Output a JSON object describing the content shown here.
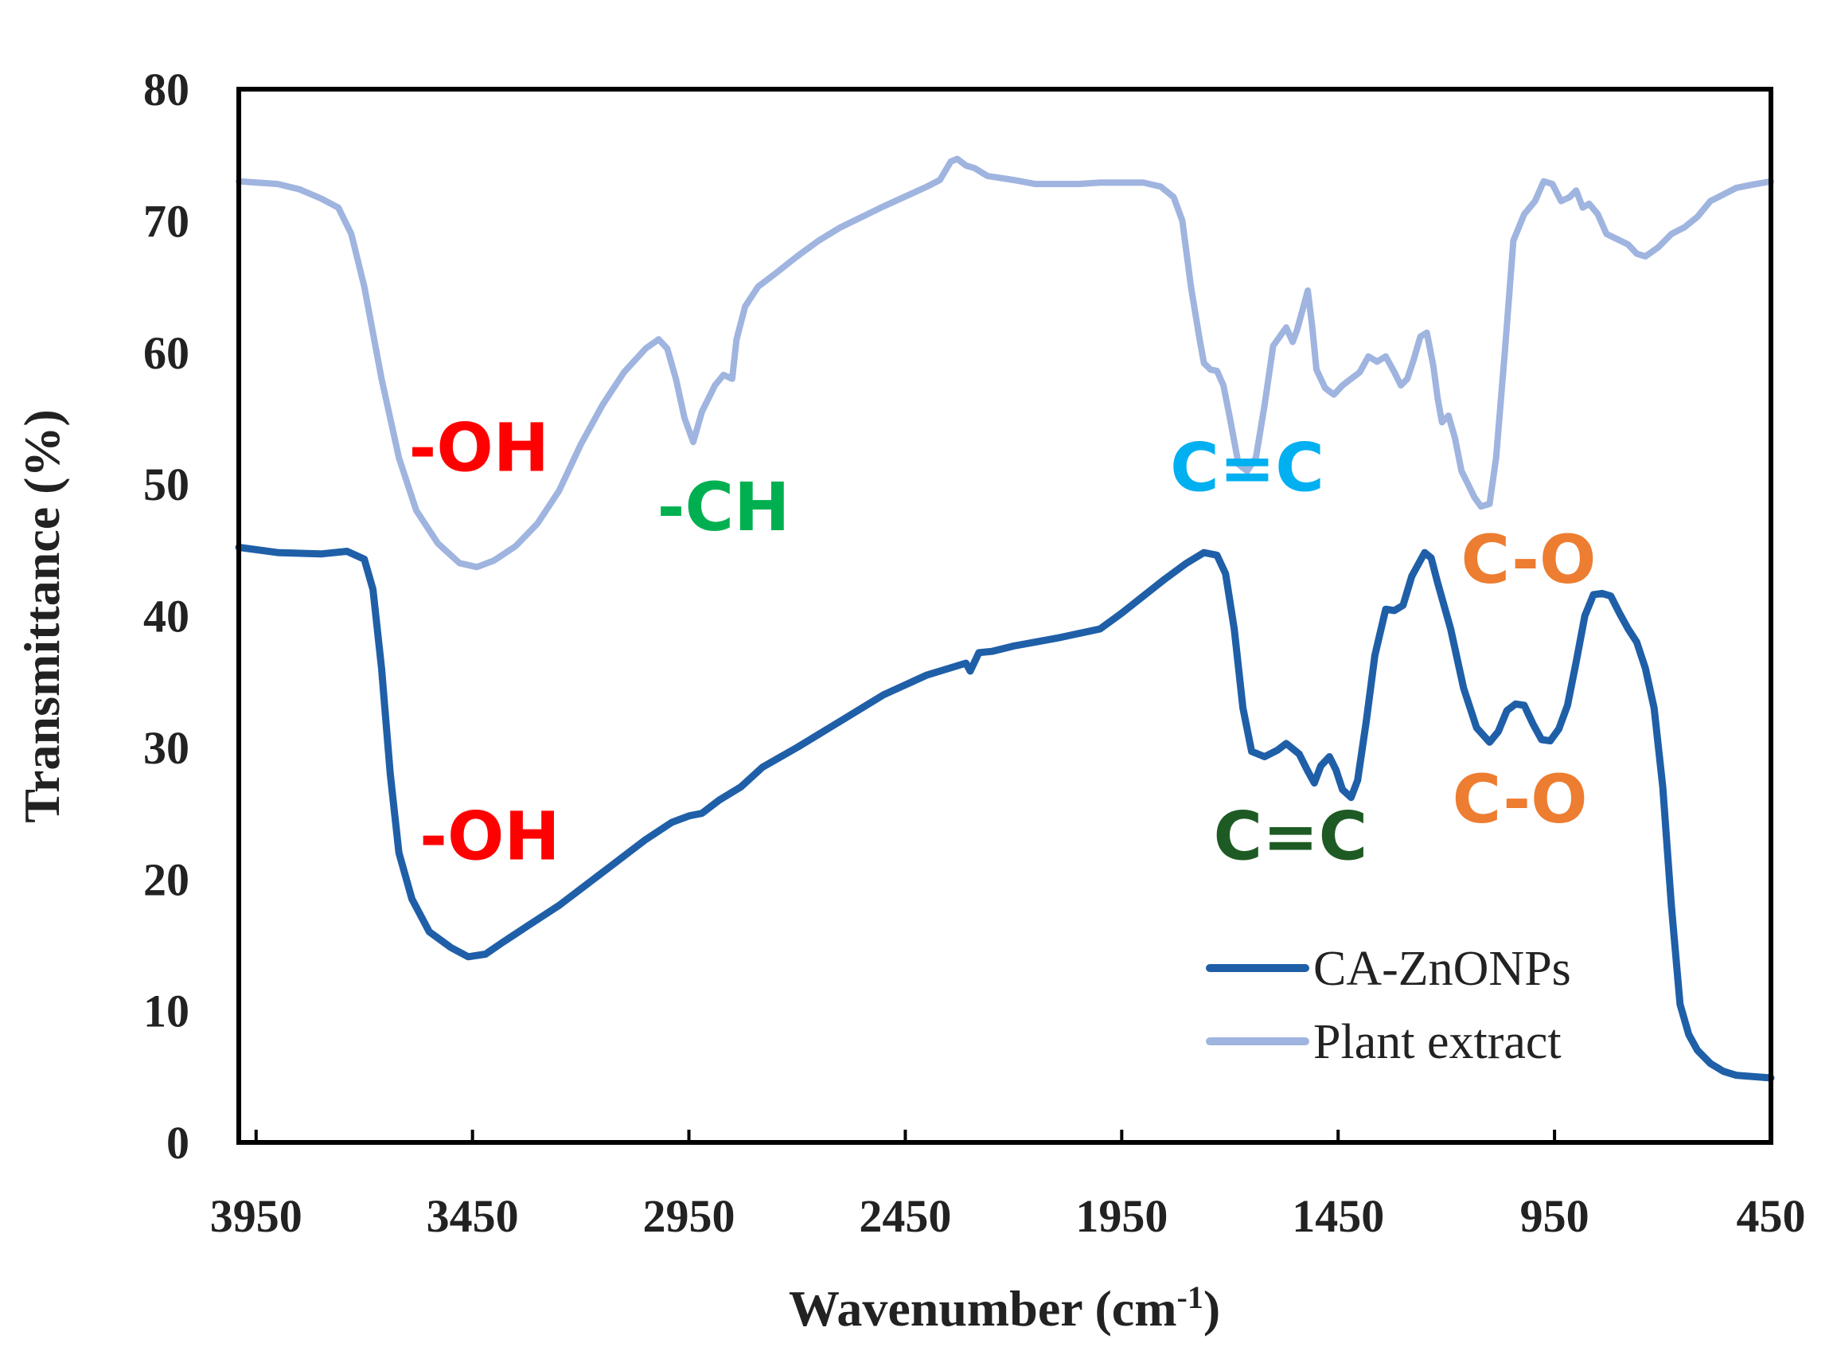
{
  "chart_data": {
    "type": "line",
    "title": "",
    "xlabel": "Wavenumber (cm",
    "xlabel_sup": "-1",
    "xlabel_close": ")",
    "ylabel": "Transmittance (%)",
    "xlim": [
      3990,
      450
    ],
    "ylim": [
      0,
      80
    ],
    "xticks": [
      3950,
      3450,
      2950,
      2450,
      1950,
      1450,
      950,
      450
    ],
    "xtick_labels": [
      "3950",
      "3450",
      "2950",
      "2450",
      "1950",
      "1450",
      "950",
      "450"
    ],
    "yticks": [
      0,
      10,
      20,
      30,
      40,
      50,
      60,
      70,
      80
    ],
    "ytick_labels": [
      "0",
      "10",
      "20",
      "30",
      "40",
      "50",
      "60",
      "70",
      "80"
    ],
    "legend_position": "bottom-right",
    "series": [
      {
        "name": "CA-ZnONPs",
        "color": "#1f5fa8",
        "points": [
          [
            3990,
            45.2
          ],
          [
            3900,
            44.8
          ],
          [
            3800,
            44.7
          ],
          [
            3740,
            44.9
          ],
          [
            3700,
            44.3
          ],
          [
            3680,
            42
          ],
          [
            3660,
            36
          ],
          [
            3640,
            28
          ],
          [
            3620,
            22
          ],
          [
            3590,
            18.5
          ],
          [
            3550,
            16
          ],
          [
            3500,
            14.8
          ],
          [
            3460,
            14.1
          ],
          [
            3420,
            14.3
          ],
          [
            3380,
            15.2
          ],
          [
            3320,
            16.5
          ],
          [
            3250,
            18
          ],
          [
            3150,
            20.5
          ],
          [
            3050,
            23
          ],
          [
            2990,
            24.3
          ],
          [
            2950,
            24.8
          ],
          [
            2920,
            25
          ],
          [
            2880,
            26
          ],
          [
            2830,
            27
          ],
          [
            2780,
            28.5
          ],
          [
            2700,
            30
          ],
          [
            2600,
            32
          ],
          [
            2500,
            34
          ],
          [
            2400,
            35.5
          ],
          [
            2310,
            36.4
          ],
          [
            2300,
            35.8
          ],
          [
            2280,
            37.2
          ],
          [
            2250,
            37.3
          ],
          [
            2200,
            37.7
          ],
          [
            2100,
            38.3
          ],
          [
            2000,
            39
          ],
          [
            1950,
            40.2
          ],
          [
            1900,
            41.5
          ],
          [
            1850,
            42.8
          ],
          [
            1800,
            44
          ],
          [
            1760,
            44.8
          ],
          [
            1730,
            44.6
          ],
          [
            1710,
            43.2
          ],
          [
            1690,
            39
          ],
          [
            1670,
            33
          ],
          [
            1650,
            29.7
          ],
          [
            1620,
            29.3
          ],
          [
            1590,
            29.8
          ],
          [
            1570,
            30.3
          ],
          [
            1540,
            29.5
          ],
          [
            1520,
            28.2
          ],
          [
            1505,
            27.3
          ],
          [
            1490,
            28.6
          ],
          [
            1470,
            29.3
          ],
          [
            1455,
            28.3
          ],
          [
            1440,
            26.8
          ],
          [
            1420,
            26.2
          ],
          [
            1405,
            27.5
          ],
          [
            1385,
            32
          ],
          [
            1365,
            37
          ],
          [
            1340,
            40.5
          ],
          [
            1320,
            40.4
          ],
          [
            1300,
            40.8
          ],
          [
            1280,
            43
          ],
          [
            1250,
            44.8
          ],
          [
            1235,
            44.4
          ],
          [
            1220,
            42.5
          ],
          [
            1190,
            39
          ],
          [
            1160,
            34.5
          ],
          [
            1130,
            31.5
          ],
          [
            1100,
            30.4
          ],
          [
            1080,
            31.2
          ],
          [
            1060,
            32.8
          ],
          [
            1040,
            33.3
          ],
          [
            1020,
            33.2
          ],
          [
            1000,
            31.8
          ],
          [
            980,
            30.6
          ],
          [
            960,
            30.5
          ],
          [
            940,
            31.4
          ],
          [
            920,
            33.2
          ],
          [
            900,
            36.5
          ],
          [
            880,
            40
          ],
          [
            860,
            41.6
          ],
          [
            840,
            41.7
          ],
          [
            820,
            41.5
          ],
          [
            800,
            40.2
          ],
          [
            780,
            39
          ],
          [
            760,
            38
          ],
          [
            740,
            36
          ],
          [
            720,
            33
          ],
          [
            700,
            27
          ],
          [
            680,
            18
          ],
          [
            660,
            10.5
          ],
          [
            640,
            8.2
          ],
          [
            620,
            7
          ],
          [
            590,
            6
          ],
          [
            560,
            5.4
          ],
          [
            530,
            5.1
          ],
          [
            450,
            4.9
          ]
        ]
      },
      {
        "name": "Plant extract",
        "color": "#9fb4df",
        "points": [
          [
            3990,
            73
          ],
          [
            3900,
            72.8
          ],
          [
            3850,
            72.4
          ],
          [
            3800,
            71.7
          ],
          [
            3760,
            71
          ],
          [
            3730,
            69
          ],
          [
            3700,
            65
          ],
          [
            3660,
            58
          ],
          [
            3620,
            52
          ],
          [
            3580,
            48
          ],
          [
            3530,
            45.5
          ],
          [
            3480,
            44
          ],
          [
            3440,
            43.7
          ],
          [
            3400,
            44.2
          ],
          [
            3350,
            45.3
          ],
          [
            3300,
            47
          ],
          [
            3250,
            49.5
          ],
          [
            3200,
            53
          ],
          [
            3150,
            56
          ],
          [
            3100,
            58.5
          ],
          [
            3050,
            60.3
          ],
          [
            3020,
            61
          ],
          [
            3000,
            60.3
          ],
          [
            2980,
            58
          ],
          [
            2960,
            55
          ],
          [
            2940,
            53.2
          ],
          [
            2920,
            55.5
          ],
          [
            2890,
            57.5
          ],
          [
            2870,
            58.3
          ],
          [
            2850,
            58
          ],
          [
            2840,
            61
          ],
          [
            2820,
            63.5
          ],
          [
            2790,
            65
          ],
          [
            2750,
            66
          ],
          [
            2700,
            67.3
          ],
          [
            2650,
            68.5
          ],
          [
            2600,
            69.5
          ],
          [
            2550,
            70.3
          ],
          [
            2500,
            71.1
          ],
          [
            2440,
            72
          ],
          [
            2400,
            72.6
          ],
          [
            2370,
            73.1
          ],
          [
            2345,
            74.5
          ],
          [
            2330,
            74.7
          ],
          [
            2310,
            74.2
          ],
          [
            2290,
            74
          ],
          [
            2260,
            73.4
          ],
          [
            2200,
            73.1
          ],
          [
            2150,
            72.8
          ],
          [
            2100,
            72.8
          ],
          [
            2050,
            72.8
          ],
          [
            2000,
            72.9
          ],
          [
            1950,
            72.9
          ],
          [
            1900,
            72.9
          ],
          [
            1860,
            72.6
          ],
          [
            1830,
            71.8
          ],
          [
            1810,
            70
          ],
          [
            1790,
            65
          ],
          [
            1770,
            61
          ],
          [
            1760,
            59.2
          ],
          [
            1745,
            58.7
          ],
          [
            1730,
            58.6
          ],
          [
            1715,
            57.5
          ],
          [
            1700,
            55
          ],
          [
            1680,
            51.5
          ],
          [
            1660,
            51
          ],
          [
            1640,
            52
          ],
          [
            1620,
            56
          ],
          [
            1600,
            60.5
          ],
          [
            1585,
            61.2
          ],
          [
            1570,
            61.9
          ],
          [
            1555,
            60.8
          ],
          [
            1545,
            61.7
          ],
          [
            1530,
            63.5
          ],
          [
            1520,
            64.7
          ],
          [
            1510,
            62
          ],
          [
            1500,
            58.7
          ],
          [
            1480,
            57.3
          ],
          [
            1460,
            56.8
          ],
          [
            1440,
            57.5
          ],
          [
            1420,
            58
          ],
          [
            1400,
            58.5
          ],
          [
            1380,
            59.7
          ],
          [
            1360,
            59.3
          ],
          [
            1340,
            59.7
          ],
          [
            1320,
            58.5
          ],
          [
            1305,
            57.5
          ],
          [
            1290,
            58
          ],
          [
            1275,
            59.5
          ],
          [
            1260,
            61.2
          ],
          [
            1245,
            61.5
          ],
          [
            1230,
            59
          ],
          [
            1220,
            56.5
          ],
          [
            1210,
            54.7
          ],
          [
            1195,
            55.2
          ],
          [
            1180,
            53.5
          ],
          [
            1165,
            51
          ],
          [
            1150,
            50
          ],
          [
            1135,
            49
          ],
          [
            1120,
            48.3
          ],
          [
            1100,
            48.5
          ],
          [
            1085,
            52
          ],
          [
            1065,
            60
          ],
          [
            1045,
            68.5
          ],
          [
            1020,
            70.5
          ],
          [
            995,
            71.5
          ],
          [
            975,
            73
          ],
          [
            955,
            72.8
          ],
          [
            935,
            71.5
          ],
          [
            915,
            71.8
          ],
          [
            900,
            72.3
          ],
          [
            885,
            71
          ],
          [
            870,
            71.3
          ],
          [
            850,
            70.5
          ],
          [
            830,
            69
          ],
          [
            805,
            68.6
          ],
          [
            780,
            68.2
          ],
          [
            760,
            67.5
          ],
          [
            740,
            67.3
          ],
          [
            710,
            68
          ],
          [
            680,
            69
          ],
          [
            650,
            69.5
          ],
          [
            620,
            70.3
          ],
          [
            590,
            71.5
          ],
          [
            560,
            72
          ],
          [
            530,
            72.5
          ],
          [
            500,
            72.7
          ],
          [
            450,
            73
          ]
        ]
      }
    ],
    "annotations": [
      {
        "text": "-OH",
        "x": 3435,
        "y": 51,
        "color": "#ff0000"
      },
      {
        "text": "-CH",
        "x": 2870,
        "y": 46.5,
        "color": "#00b050"
      },
      {
        "text": "C=C",
        "x": 1660,
        "y": 49.5,
        "color": "#00b0f0"
      },
      {
        "text": "C-O",
        "x": 1010,
        "y": 42.5,
        "color": "#ed7d31"
      },
      {
        "text": "-OH",
        "x": 3410,
        "y": 21.5,
        "color": "#ff0000"
      },
      {
        "text": "C=C",
        "x": 1560,
        "y": 21.5,
        "color": "#1e5b24"
      },
      {
        "text": "C-O",
        "x": 1030,
        "y": 24.3,
        "color": "#ed7d31"
      }
    ]
  }
}
